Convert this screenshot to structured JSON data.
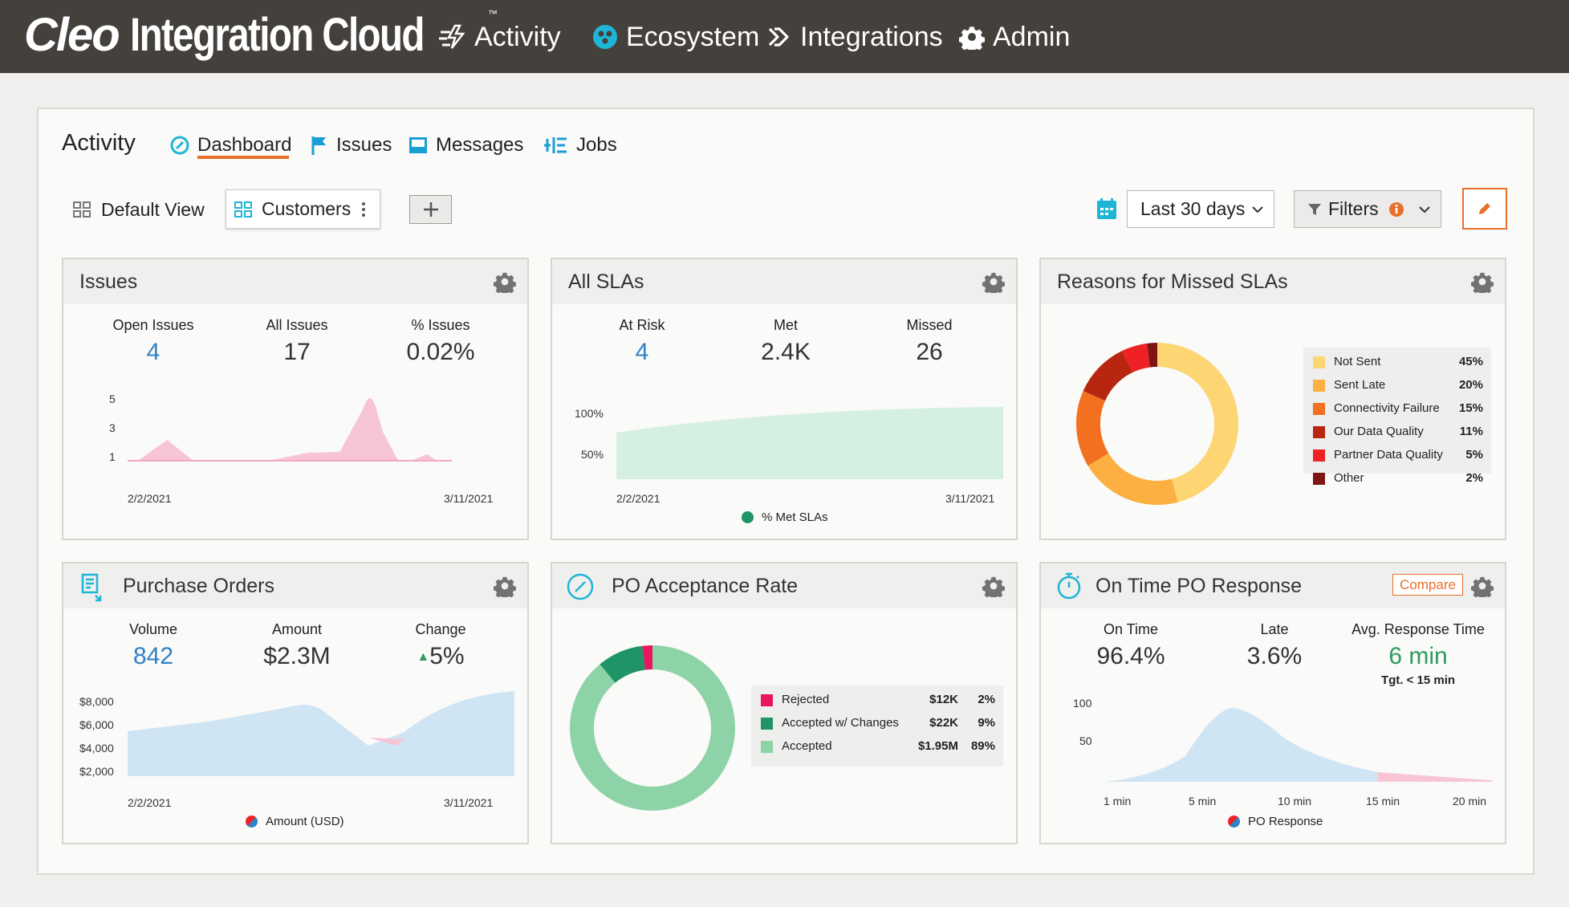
{
  "topbar": {
    "logo_cleo": "Cleo",
    "logo_rest": "Integration Cloud",
    "logo_tm": "™",
    "nav": [
      "Activity",
      "Ecosystem",
      "Integrations",
      "Admin"
    ]
  },
  "activity": {
    "title": "Activity",
    "tabs": [
      "Dashboard",
      "Issues",
      "Messages",
      "Jobs"
    ],
    "active_tab": "Dashboard",
    "views": [
      "Default View",
      "Customers"
    ],
    "date_range": "Last 30 days",
    "filters_label": "Filters"
  },
  "cards": {
    "issues": {
      "title": "Issues",
      "metrics": [
        {
          "label": "Open Issues",
          "value": "4"
        },
        {
          "label": "All Issues",
          "value": "17"
        },
        {
          "label": "% Issues",
          "value": "0.02%"
        }
      ],
      "y_ticks": [
        "5",
        "3",
        "1"
      ],
      "x_start": "2/2/2021",
      "x_end": "3/11/2021"
    },
    "slas": {
      "title": "All SLAs",
      "metrics": [
        {
          "label": "At Risk",
          "value": "4"
        },
        {
          "label": "Met",
          "value": "2.4K"
        },
        {
          "label": "Missed",
          "value": "26"
        }
      ],
      "y_ticks": [
        "100%",
        "50%"
      ],
      "x_start": "2/2/2021",
      "x_end": "3/11/2021",
      "legend": "% Met SLAs"
    },
    "reasons": {
      "title": "Reasons for Missed SLAs",
      "items": [
        {
          "label": "Not Sent",
          "pct": "45%",
          "value": 45,
          "color": "#fdd573"
        },
        {
          "label": "Sent Late",
          "pct": "20%",
          "value": 20,
          "color": "#fbb041"
        },
        {
          "label": "Connectivity Failure",
          "pct": "15%",
          "value": 15,
          "color": "#f37021"
        },
        {
          "label": "Our Data Quality",
          "pct": "11%",
          "value": 11,
          "color": "#b8260f"
        },
        {
          "label": "Partner Data Quality",
          "pct": "5%",
          "value": 5,
          "color": "#ee2224"
        },
        {
          "label": "Other",
          "pct": "2%",
          "value": 2,
          "color": "#7e1413"
        }
      ]
    },
    "po": {
      "title": "Purchase Orders",
      "metrics": [
        {
          "label": "Volume",
          "value": "842"
        },
        {
          "label": "Amount",
          "value": "$2.3M"
        },
        {
          "label": "Change",
          "value": "5%"
        }
      ],
      "change_arrow": "▲",
      "y_ticks": [
        "$8,000",
        "$6,000",
        "$4,000",
        "$2,000"
      ],
      "x_start": "2/2/2021",
      "x_end": "3/11/2021",
      "legend": "Amount (USD)"
    },
    "acceptance": {
      "title": "PO Acceptance Rate",
      "items": [
        {
          "label": "Rejected",
          "amount": "$12K",
          "pct": "2%",
          "value": 2,
          "color": "#e8175d"
        },
        {
          "label": "Accepted w/ Changes",
          "amount": "$22K",
          "pct": "9%",
          "value": 9,
          "color": "#1f9567"
        },
        {
          "label": "Accepted",
          "amount": "$1.95M",
          "pct": "89%",
          "value": 89,
          "color": "#8ed3a8"
        }
      ]
    },
    "ontime": {
      "title": "On Time PO Response",
      "compare_label": "Compare",
      "metrics": [
        {
          "label": "On Time",
          "value": "96.4%"
        },
        {
          "label": "Late",
          "value": "3.6%"
        },
        {
          "label": "Avg. Response Time",
          "value": "6 min"
        }
      ],
      "target": "Tgt. < 15 min",
      "y_ticks": [
        "100",
        "50"
      ],
      "x_ticks": [
        "1 min",
        "5 min",
        "10 min",
        "15 min",
        "20 min"
      ],
      "legend": "PO Response"
    }
  },
  "colors": {
    "topbar": "#44403c",
    "accent": "#e8702a",
    "blue": "#2f82c5",
    "green": "#2e9a5f",
    "pink": "#f8c5d6",
    "mint": "#d6efe3",
    "lightblue": "#cfe5f3"
  }
}
